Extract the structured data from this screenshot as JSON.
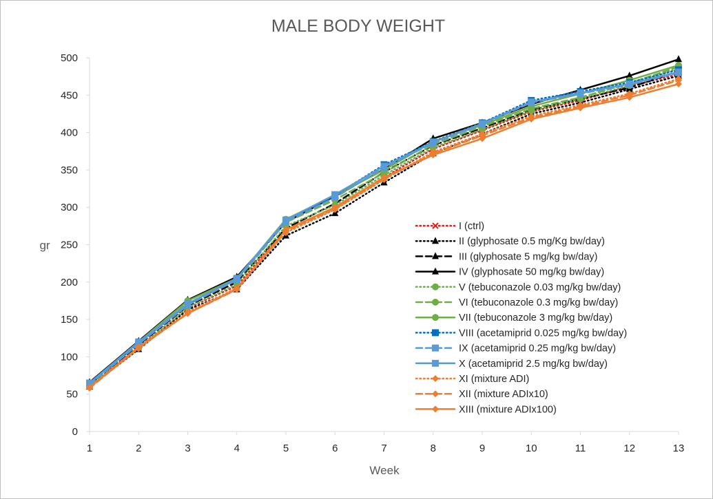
{
  "chart_data": {
    "type": "line",
    "title": "MALE BODY WEIGHT",
    "xlabel": "Week",
    "ylabel": "gr",
    "x": [
      1,
      2,
      3,
      4,
      5,
      6,
      7,
      8,
      9,
      10,
      11,
      12,
      13
    ],
    "xlim": [
      1,
      13
    ],
    "ylim": [
      0,
      500
    ],
    "yticks": [
      0,
      50,
      100,
      150,
      200,
      250,
      300,
      350,
      400,
      450,
      500
    ],
    "grid": false,
    "legend_position": "right-center",
    "series": [
      {
        "name": "I (ctrl)",
        "color": "#e31a1c",
        "dash": "dot",
        "marker": "x",
        "values": [
          62,
          113,
          165,
          195,
          270,
          300,
          340,
          378,
          403,
          428,
          443,
          462,
          478
        ]
      },
      {
        "name": "II (glyphosate 0.5 mg/Kg bw/day)",
        "color": "#000000",
        "dash": "dot",
        "marker": "triangle",
        "values": [
          60,
          110,
          163,
          190,
          262,
          292,
          333,
          372,
          398,
          425,
          440,
          458,
          476
        ]
      },
      {
        "name": "III (glyphosate 5 mg/kg bw/day)",
        "color": "#000000",
        "dash": "dash",
        "marker": "triangle",
        "values": [
          63,
          116,
          168,
          200,
          272,
          305,
          347,
          383,
          406,
          430,
          445,
          460,
          482
        ]
      },
      {
        "name": "IV (glyphosate 50 mg/kg bw/day)",
        "color": "#000000",
        "dash": "solid",
        "marker": "triangle",
        "values": [
          66,
          121,
          176,
          207,
          280,
          315,
          351,
          392,
          413,
          438,
          457,
          476,
          498
        ]
      },
      {
        "name": "V (tebuconazole 0.03 mg/kg bw/day)",
        "color": "#70ad47",
        "dash": "dot",
        "marker": "circle",
        "values": [
          61,
          112,
          166,
          197,
          275,
          303,
          343,
          380,
          404,
          429,
          445,
          463,
          486
        ]
      },
      {
        "name": "VI (tebuconazole 0.3 mg/kg bw/day)",
        "color": "#70ad47",
        "dash": "dash",
        "marker": "circle",
        "values": [
          64,
          117,
          172,
          202,
          280,
          310,
          346,
          384,
          408,
          432,
          447,
          466,
          488
        ]
      },
      {
        "name": "VII (tebuconazole 3 mg/kg bw/day)",
        "color": "#70ad47",
        "dash": "solid",
        "marker": "circle",
        "values": [
          65,
          120,
          175,
          205,
          284,
          316,
          350,
          388,
          410,
          435,
          452,
          470,
          490
        ]
      },
      {
        "name": "VIII (acetamiprid 0.025 mg/kg bw/day)",
        "color": "#0070c0",
        "dash": "dot",
        "marker": "square",
        "values": [
          64,
          118,
          170,
          204,
          282,
          316,
          357,
          388,
          413,
          443,
          455,
          467,
          484
        ]
      },
      {
        "name": "IX (acetamiprid 0.25 mg/kg bw/day)",
        "color": "#5b9bd5",
        "dash": "dash",
        "marker": "square",
        "values": [
          63,
          117,
          169,
          203,
          281,
          313,
          353,
          386,
          411,
          440,
          452,
          464,
          480
        ]
      },
      {
        "name": "X (acetamiprid 2.5 mg/kg bw/day)",
        "color": "#5b9bd5",
        "dash": "solid",
        "marker": "square",
        "values": [
          65,
          120,
          171,
          205,
          283,
          317,
          355,
          387,
          412,
          441,
          453,
          465,
          481
        ]
      },
      {
        "name": "XI (mixture ADI)",
        "color": "#ed7d31",
        "dash": "dot",
        "marker": "diamond",
        "values": [
          59,
          111,
          160,
          192,
          266,
          297,
          337,
          374,
          398,
          422,
          437,
          452,
          472
        ]
      },
      {
        "name": "XII (mixture ADIx10)",
        "color": "#ed7d31",
        "dash": "dash",
        "marker": "diamond",
        "values": [
          58,
          112,
          158,
          190,
          268,
          298,
          338,
          372,
          396,
          420,
          435,
          450,
          470
        ]
      },
      {
        "name": "XIII (mixture ADIx100)",
        "color": "#ed7d31",
        "dash": "solid",
        "marker": "diamond",
        "values": [
          59,
          113,
          158,
          191,
          270,
          300,
          340,
          370,
          392,
          418,
          433,
          447,
          465
        ]
      }
    ]
  }
}
